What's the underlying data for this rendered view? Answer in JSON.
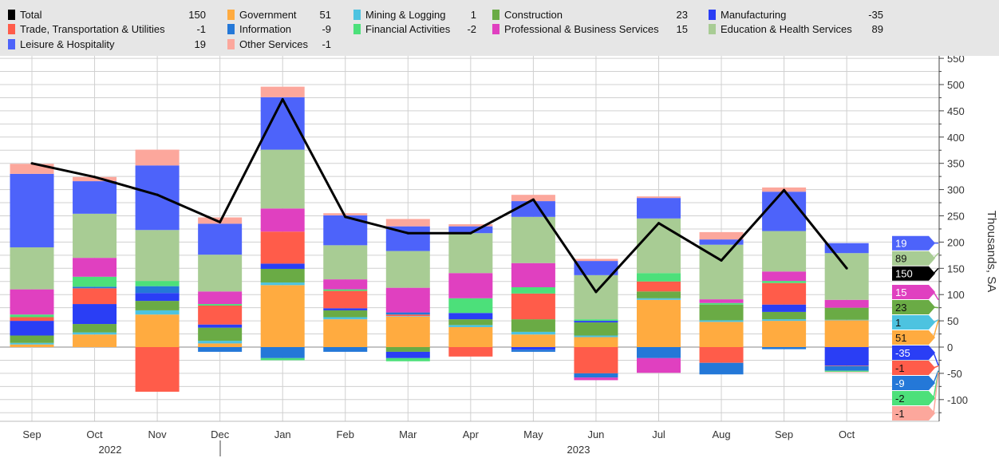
{
  "chart_data": {
    "type": "bar",
    "stacked": true,
    "categories": [
      "Sep",
      "Oct",
      "Nov",
      "Dec",
      "Jan",
      "Feb",
      "Mar",
      "Apr",
      "May",
      "Jun",
      "Jul",
      "Aug",
      "Sep",
      "Oct"
    ],
    "year_labels": [
      "2022",
      "2023"
    ],
    "ylabel": "Thousands, SA",
    "ylim": [
      -150,
      560
    ],
    "yticks": [
      550,
      500,
      450,
      400,
      350,
      300,
      250,
      200,
      150,
      100,
      50,
      0,
      -50,
      -100
    ],
    "grid": true,
    "legend_position": "top",
    "axis_side": "right",
    "line": {
      "name": "Total",
      "color": "#000000",
      "latest": "150",
      "values": [
        350,
        324,
        290,
        238,
        472,
        248,
        217,
        217,
        281,
        105,
        236,
        165,
        299,
        150
      ]
    },
    "series": [
      {
        "name": "Government",
        "color": "#FFAB40",
        "latest": "51",
        "values": [
          5,
          24,
          62,
          7,
          118,
          53,
          58,
          38,
          24,
          19,
          90,
          48,
          50,
          51
        ]
      },
      {
        "name": "Mining & Logging",
        "color": "#4DC3E0",
        "latest": "1",
        "values": [
          3,
          4,
          8,
          5,
          5,
          4,
          1,
          4,
          5,
          3,
          3,
          3,
          3,
          1
        ]
      },
      {
        "name": "Construction",
        "color": "#6AAB45",
        "latest": "23",
        "values": [
          14,
          16,
          18,
          25,
          26,
          13,
          -9,
          11,
          24,
          25,
          13,
          30,
          14,
          23
        ]
      },
      {
        "name": "Manufacturing",
        "color": "#2A3EF5",
        "latest": "-35",
        "values": [
          28,
          38,
          15,
          6,
          10,
          4,
          -12,
          12,
          -5,
          3,
          0,
          0,
          14,
          -35
        ]
      },
      {
        "name": "Trade, Transportation & Utilities",
        "color": "#FF5C4A",
        "latest": "-1",
        "values": [
          7,
          30,
          -85,
          36,
          61,
          33,
          3,
          -18,
          49,
          -50,
          19,
          -30,
          41,
          -1
        ]
      },
      {
        "name": "Information",
        "color": "#2478D8",
        "latest": "-9",
        "values": [
          0,
          3,
          13,
          -9,
          -21,
          -9,
          4,
          0,
          -4,
          -8,
          -21,
          -22,
          -4,
          -9
        ]
      },
      {
        "name": "Financial Activities",
        "color": "#4CE07A",
        "latest": "-2",
        "values": [
          5,
          19,
          10,
          3,
          -4,
          3,
          -6,
          28,
          12,
          3,
          16,
          3,
          4,
          -2
        ]
      },
      {
        "name": "Professional & Business Services",
        "color": "#E040C0",
        "latest": "15",
        "values": [
          48,
          36,
          0,
          24,
          44,
          19,
          47,
          48,
          46,
          -5,
          -28,
          7,
          18,
          15
        ]
      },
      {
        "name": "Education & Health Services",
        "color": "#A8CC94",
        "latest": "89",
        "values": [
          80,
          84,
          97,
          70,
          112,
          65,
          70,
          76,
          88,
          84,
          104,
          104,
          77,
          89
        ]
      },
      {
        "name": "Leisure & Hospitality",
        "color": "#4D63FA",
        "latest": "19",
        "values": [
          140,
          62,
          123,
          59,
          100,
          57,
          47,
          13,
          30,
          27,
          39,
          10,
          75,
          19
        ]
      },
      {
        "name": "Other Services",
        "color": "#FCA79C",
        "latest": "-1",
        "values": [
          19,
          8,
          30,
          12,
          20,
          4,
          14,
          4,
          12,
          4,
          3,
          14,
          8,
          -1
        ]
      }
    ]
  },
  "legend": [
    {
      "name": "Total",
      "value": "150"
    },
    {
      "name": "Government",
      "value": "51"
    },
    {
      "name": "Mining & Logging",
      "value": "1"
    },
    {
      "name": "Construction",
      "value": "23"
    },
    {
      "name": "Manufacturing",
      "value": "-35"
    },
    {
      "name": "Trade, Transportation & Utilities",
      "value": "-1"
    },
    {
      "name": "Information",
      "value": "-9"
    },
    {
      "name": "Financial Activities",
      "value": "-2"
    },
    {
      "name": "Professional & Business Services",
      "value": "15"
    },
    {
      "name": "Education & Health Services",
      "value": "89"
    },
    {
      "name": "Leisure & Hospitality",
      "value": "19"
    },
    {
      "name": "Other Services",
      "value": "-1"
    }
  ]
}
